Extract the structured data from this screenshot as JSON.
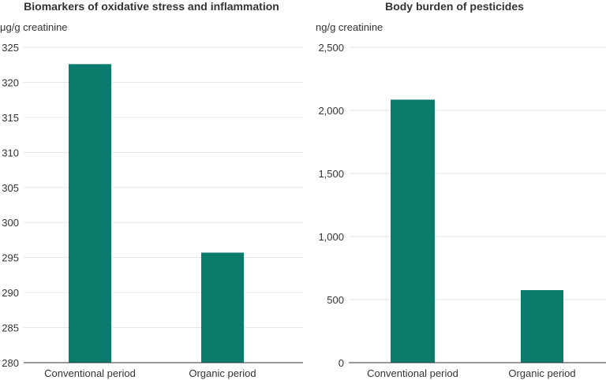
{
  "colors": {
    "bar": "#0b7b6b",
    "grid": "#e6e6e6",
    "axis": "#333333",
    "text": "#333333"
  },
  "chart_data": [
    {
      "type": "bar",
      "title": "Biomarkers of oxidative stress and inflammation",
      "ylabel": "μg/g creatinine",
      "xlabel": "",
      "categories": [
        "Conventional period",
        "Organic period"
      ],
      "values": [
        322.6,
        295.7
      ],
      "ylim": [
        280,
        325
      ],
      "yticks": [
        280,
        285,
        290,
        295,
        300,
        305,
        310,
        315,
        320,
        325
      ],
      "grid": true,
      "legend": "none"
    },
    {
      "type": "bar",
      "title": "Body burden of pesticides",
      "ylabel": "ng/g creatinine",
      "xlabel": "",
      "categories": [
        "Conventional period",
        "Organic period"
      ],
      "values": [
        2085,
        575
      ],
      "ylim": [
        0,
        2500
      ],
      "yticks": [
        0,
        500,
        1000,
        1500,
        2000,
        2500
      ],
      "grid": true,
      "legend": "none"
    }
  ]
}
